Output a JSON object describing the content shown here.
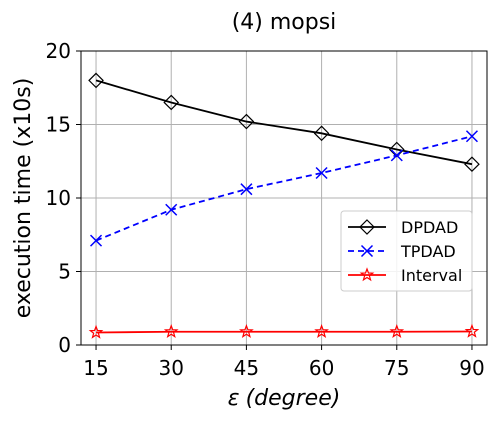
{
  "chart_data": {
    "type": "line",
    "title": "(4) mopsi",
    "xlabel_symbol": "ε",
    "xlabel_text": "(degree)",
    "ylabel": "execution time (x10s)",
    "x": [
      15,
      30,
      45,
      60,
      75,
      90
    ],
    "xticks": [
      "15",
      "30",
      "45",
      "60",
      "75",
      "90"
    ],
    "yticks": [
      "0",
      "5",
      "10",
      "15",
      "20"
    ],
    "xlim": [
      12,
      93
    ],
    "ylim": [
      0,
      20
    ],
    "grid": true,
    "legend_position": "center-right",
    "series": [
      {
        "name": "DPDAD",
        "color": "#000000",
        "linestyle": "solid",
        "marker": "diamond",
        "values": [
          18.0,
          16.5,
          15.2,
          14.4,
          13.3,
          12.3
        ]
      },
      {
        "name": "TPDAD",
        "color": "#0000ff",
        "linestyle": "dashed",
        "marker": "x",
        "values": [
          7.1,
          9.2,
          10.6,
          11.7,
          12.9,
          14.2
        ]
      },
      {
        "name": "Interval",
        "color": "#ff0000",
        "linestyle": "solid",
        "marker": "star",
        "values": [
          0.85,
          0.9,
          0.9,
          0.9,
          0.9,
          0.92
        ]
      }
    ]
  }
}
